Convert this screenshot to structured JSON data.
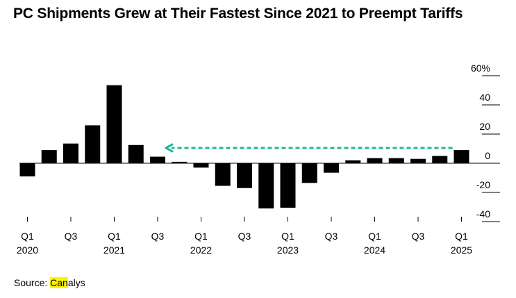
{
  "chart_data": {
    "type": "bar",
    "title": "PC Shipments Grew at Their Fastest Since 2021 to Preempt Tariffs",
    "categories": [
      "Q1 2020",
      "Q2 2020",
      "Q3 2020",
      "Q4 2020",
      "Q1 2021",
      "Q2 2021",
      "Q3 2021",
      "Q4 2021",
      "Q1 2022",
      "Q2 2022",
      "Q3 2022",
      "Q4 2022",
      "Q1 2023",
      "Q2 2023",
      "Q3 2023",
      "Q4 2023",
      "Q1 2024",
      "Q2 2024",
      "Q3 2024",
      "Q4 2024",
      "Q1 2025"
    ],
    "values": [
      -9.0,
      9.0,
      13.5,
      26.0,
      53.5,
      12.5,
      4.5,
      1.0,
      -3.0,
      -15.5,
      -17.0,
      -31.0,
      -30.5,
      -13.5,
      -6.5,
      2.0,
      3.5,
      3.5,
      3.0,
      5.0,
      9.0
    ],
    "y_ticks": [
      60,
      40,
      20,
      0,
      -20,
      -40
    ],
    "y_tick_labels": [
      "60%",
      "40",
      "20",
      "0",
      "-20",
      "-40"
    ],
    "ylim": [
      -40,
      60
    ],
    "x_tick_labels": [
      {
        "index": 0,
        "quarter": "Q1",
        "year": "2020"
      },
      {
        "index": 2,
        "quarter": "Q3",
        "year": ""
      },
      {
        "index": 4,
        "quarter": "Q1",
        "year": "2021"
      },
      {
        "index": 6,
        "quarter": "Q3",
        "year": ""
      },
      {
        "index": 8,
        "quarter": "Q1",
        "year": "2022"
      },
      {
        "index": 10,
        "quarter": "Q3",
        "year": ""
      },
      {
        "index": 12,
        "quarter": "Q1",
        "year": "2023"
      },
      {
        "index": 14,
        "quarter": "Q3",
        "year": ""
      },
      {
        "index": 16,
        "quarter": "Q1",
        "year": "2024"
      },
      {
        "index": 18,
        "quarter": "Q3",
        "year": ""
      },
      {
        "index": 20,
        "quarter": "Q1",
        "year": "2025"
      }
    ],
    "annotation": {
      "type": "dashed-arrow",
      "from_index": 20,
      "to_index": 6,
      "at_value": 10.5,
      "color": "#1bb89a"
    },
    "bar_color": "#000000",
    "grid": false
  },
  "source": {
    "prefix": "Source: ",
    "highlight": "Can",
    "rest": "alys",
    "highlight_color": "#fff200"
  }
}
